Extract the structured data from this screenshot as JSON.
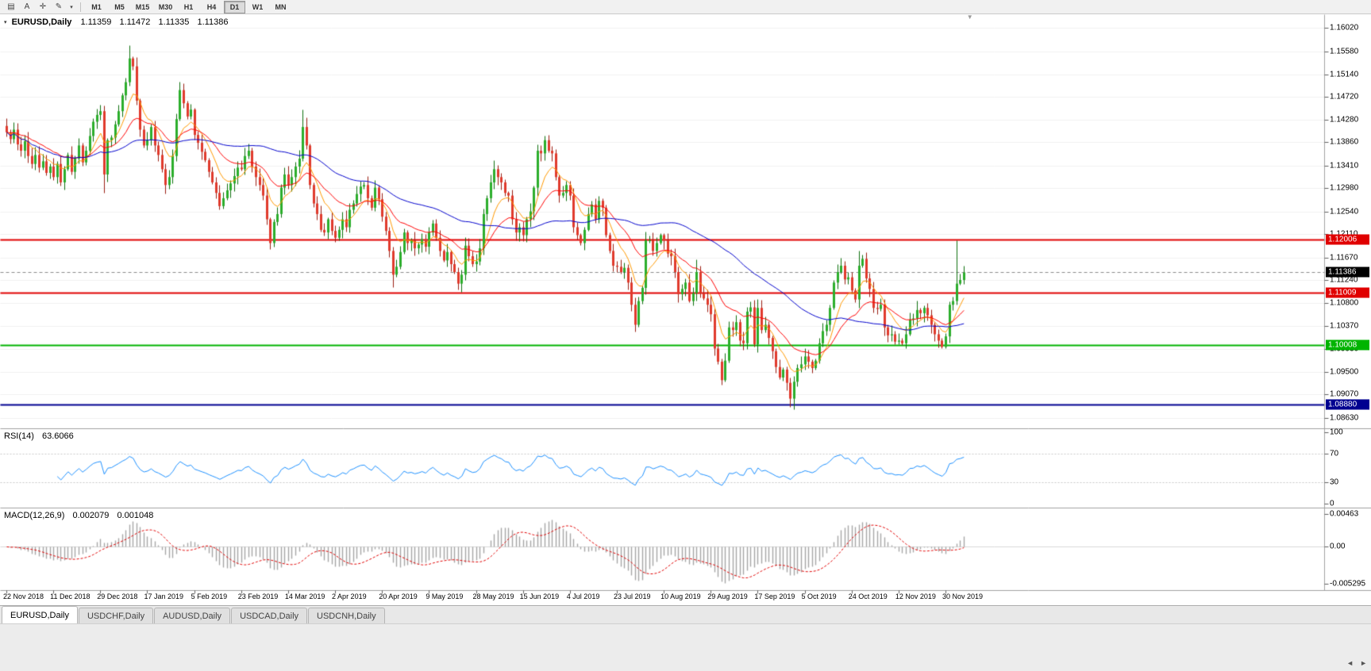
{
  "icons": {
    "header_collapse": "▾",
    "shift_marker": "▼",
    "tab_scroll_left": "◄",
    "tab_scroll_right": "►"
  },
  "toolbar": {
    "tools": [
      {
        "name": "chart-windows-icon",
        "glyph": "▤"
      },
      {
        "name": "text-tool-icon",
        "glyph": "A"
      },
      {
        "name": "crosshair-icon",
        "glyph": "✛"
      },
      {
        "name": "draw-tools-icon",
        "glyph": "✎"
      },
      {
        "name": "draw-tools-dropdown-icon",
        "glyph": "▾"
      }
    ],
    "timeframes": [
      "M1",
      "M5",
      "M15",
      "M30",
      "H1",
      "H4",
      "D1",
      "W1",
      "MN"
    ],
    "active_timeframe": "D1"
  },
  "header": {
    "symbol": "EURUSD,Daily",
    "open": "1.11359",
    "high": "1.11472",
    "low": "1.11335",
    "close": "1.11386"
  },
  "price_scale": {
    "ticks": [
      "1.16020",
      "1.15580",
      "1.15140",
      "1.14720",
      "1.14280",
      "1.13860",
      "1.13410",
      "1.12980",
      "1.12540",
      "1.12110",
      "1.11670",
      "1.11240",
      "1.10800",
      "1.10370",
      "1.09930",
      "1.09500",
      "1.09070",
      "1.08630"
    ]
  },
  "badges": [
    {
      "name": "resistance-1-badge",
      "label": "1.12006",
      "value": 1.12006,
      "bg": "#e00000"
    },
    {
      "name": "current-price-badge",
      "label": "1.11386",
      "value": 1.11386,
      "bg": "#000000"
    },
    {
      "name": "resistance-2-badge",
      "label": "1.11009",
      "value": 1.11009,
      "bg": "#e00000"
    },
    {
      "name": "support-badge",
      "label": "1.10008",
      "value": 1.10008,
      "bg": "#00b400"
    },
    {
      "name": "support-low-badge",
      "label": "1.08880",
      "value": 1.0888,
      "bg": "#000090"
    }
  ],
  "levels": [
    {
      "name": "resistance-line-1",
      "value": 1.12006,
      "color": "#e00000",
      "width": 2,
      "dash": null
    },
    {
      "name": "resistance-line-2",
      "value": 1.11009,
      "color": "#e00000",
      "width": 2,
      "dash": null
    },
    {
      "name": "support-line",
      "value": 1.10008,
      "color": "#00b400",
      "width": 2,
      "dash": null
    },
    {
      "name": "support-line-low",
      "value": 1.0888,
      "color": "#000090",
      "width": 2,
      "dash": null
    },
    {
      "name": "current-price-line",
      "value": 1.11386,
      "color": "#8a8a8a",
      "width": 1,
      "dash": [
        4,
        3
      ]
    }
  ],
  "indicators": {
    "rsi": {
      "label": "RSI(14)",
      "value": "63.6066",
      "ticks": [
        "100",
        "70",
        "30",
        "0"
      ],
      "levels": [
        70,
        30
      ],
      "color": "#1e90ff"
    },
    "macd": {
      "label": "MACD(12,26,9)",
      "value_main": "0.002079",
      "value_signal": "0.001048",
      "ticks": [
        "0.00463",
        "0.00",
        "-0.005295"
      ],
      "histogram_color": "#a6a6a6",
      "signal_color": "#e00000"
    }
  },
  "chart_data": {
    "type": "candlestick",
    "symbol": "EURUSD",
    "timeframe": "Daily",
    "y_range": [
      1.0843,
      1.1628
    ],
    "label_spacing_bars": 13,
    "x_labels": [
      "22 Nov 2018",
      "11 Dec 2018",
      "29 Dec 2018",
      "17 Jan 2019",
      "5 Feb 2019",
      "23 Feb 2019",
      "14 Mar 2019",
      "2 Apr 2019",
      "20 Apr 2019",
      "9 May 2019",
      "28 May 2019",
      "15 Jun 2019",
      "4 Jul 2019",
      "23 Jul 2019",
      "10 Aug 2019",
      "29 Aug 2019",
      "17 Sep 2019",
      "5 Oct 2019",
      "24 Oct 2019",
      "12 Nov 2019",
      "30 Nov 2019"
    ],
    "closes": [
      1.1405,
      1.1392,
      1.141,
      1.1382,
      1.137,
      1.1388,
      1.136,
      1.1345,
      1.1362,
      1.1338,
      1.135,
      1.1328,
      1.134,
      1.132,
      1.1345,
      1.131,
      1.1335,
      1.1362,
      1.133,
      1.1355,
      1.138,
      1.1348,
      1.137,
      1.1398,
      1.1425,
      1.1438,
      1.1445,
      1.1325,
      1.139,
      1.1395,
      1.142,
      1.1445,
      1.1475,
      1.15,
      1.1545,
      1.153,
      1.1465,
      1.141,
      1.138,
      1.139,
      1.1415,
      1.138,
      1.1362,
      1.1335,
      1.1305,
      1.132,
      1.136,
      1.143,
      1.1485,
      1.146,
      1.1435,
      1.1448,
      1.14,
      1.1385,
      1.1368,
      1.1352,
      1.133,
      1.131,
      1.129,
      1.1265,
      1.128,
      1.1295,
      1.1308,
      1.1322,
      1.1338,
      1.1335,
      1.136,
      1.137,
      1.134,
      1.132,
      1.1305,
      1.1285,
      1.124,
      1.1195,
      1.1235,
      1.125,
      1.13,
      1.1325,
      1.1305,
      1.132,
      1.134,
      1.1355,
      1.1415,
      1.138,
      1.1305,
      1.127,
      1.125,
      1.122,
      1.1215,
      1.124,
      1.1218,
      1.1205,
      1.122,
      1.124,
      1.1225,
      1.1258,
      1.127,
      1.1288,
      1.1302,
      1.1305,
      1.128,
      1.1262,
      1.13,
      1.1278,
      1.1245,
      1.1218,
      1.118,
      1.1135,
      1.115,
      1.1178,
      1.1215,
      1.1195,
      1.12,
      1.1185,
      1.1192,
      1.1202,
      1.1188,
      1.1215,
      1.1232,
      1.1205,
      1.118,
      1.1162,
      1.1178,
      1.1155,
      1.114,
      1.1118,
      1.1135,
      1.119,
      1.117,
      1.1155,
      1.116,
      1.1185,
      1.125,
      1.128,
      1.131,
      1.1335,
      1.132,
      1.131,
      1.129,
      1.1285,
      1.124,
      1.1215,
      1.1225,
      1.121,
      1.124,
      1.1255,
      1.13,
      1.137,
      1.1365,
      1.139,
      1.137,
      1.1365,
      1.132,
      1.1285,
      1.129,
      1.1305,
      1.1285,
      1.1225,
      1.121,
      1.1195,
      1.122,
      1.125,
      1.1268,
      1.124,
      1.1275,
      1.1262,
      1.121,
      1.118,
      1.1152,
      1.115,
      1.114,
      1.1148,
      1.112,
      1.1078,
      1.104,
      1.1085,
      1.111,
      1.12,
      1.12,
      1.118,
      1.1195,
      1.121,
      1.12,
      1.1175,
      1.117,
      1.114,
      1.1098,
      1.1108,
      1.112,
      1.1085,
      1.11,
      1.114,
      1.11,
      1.109,
      1.1078,
      1.106,
      1.0995,
      1.097,
      1.0935,
      1.0972,
      1.1035,
      1.103,
      1.1045,
      1.101,
      1.1005,
      1.1065,
      1.1073,
      1.1003,
      1.1072,
      1.103,
      1.104,
      1.1015,
      1.099,
      1.096,
      1.094,
      1.0955,
      1.093,
      1.09,
      1.0932,
      1.0958,
      1.0965,
      1.098,
      1.097,
      1.0958,
      1.0972,
      1.1005,
      1.1028,
      1.104,
      1.1072,
      1.112,
      1.114,
      1.1152,
      1.1126,
      1.113,
      1.1105,
      1.1088,
      1.1152,
      1.1165,
      1.1128,
      1.1108,
      1.1072,
      1.107,
      1.1078,
      1.1035,
      1.102,
      1.1022,
      1.1008,
      1.101,
      1.1005,
      1.1022,
      1.105,
      1.1052,
      1.1068,
      1.1062,
      1.1072,
      1.1058,
      1.104,
      1.1022,
      1.101,
      1.0998,
      1.1018,
      1.1078,
      1.1085,
      1.1118,
      1.1125,
      1.1139
    ],
    "wick_overrides": {
      "27": {
        "low": 1.129
      },
      "34": {
        "high": 1.157
      },
      "48": {
        "high": 1.15
      },
      "82": {
        "high": 1.1448
      },
      "107": {
        "low": 1.111
      },
      "125": {
        "low": 1.1107
      },
      "150": {
        "high": 1.14
      },
      "174": {
        "low": 1.1026
      },
      "191": {
        "high": 1.1163
      },
      "198": {
        "low": 1.0926
      },
      "218": {
        "low": 1.0879
      },
      "236": {
        "high": 1.118
      },
      "263": {
        "high": 1.12
      }
    },
    "moving_averages": [
      {
        "period": 8,
        "type": "ema",
        "color": "#ff9900"
      },
      {
        "period": 21,
        "type": "ema",
        "color": "#ff0000"
      },
      {
        "period": 55,
        "type": "sma",
        "color": "#0000cc"
      }
    ],
    "candle_colors": {
      "up_body": "#2bae2b",
      "up_border": "#0d6f0d",
      "down_body": "#e03a2c",
      "down_border": "#9a1d10"
    }
  },
  "tabs": [
    {
      "label": "EURUSD,Daily",
      "active": true
    },
    {
      "label": "USDCHF,Daily",
      "active": false
    },
    {
      "label": "AUDUSD,Daily",
      "active": false
    },
    {
      "label": "USDCAD,Daily",
      "active": false
    },
    {
      "label": "USDCNH,Daily",
      "active": false
    }
  ]
}
